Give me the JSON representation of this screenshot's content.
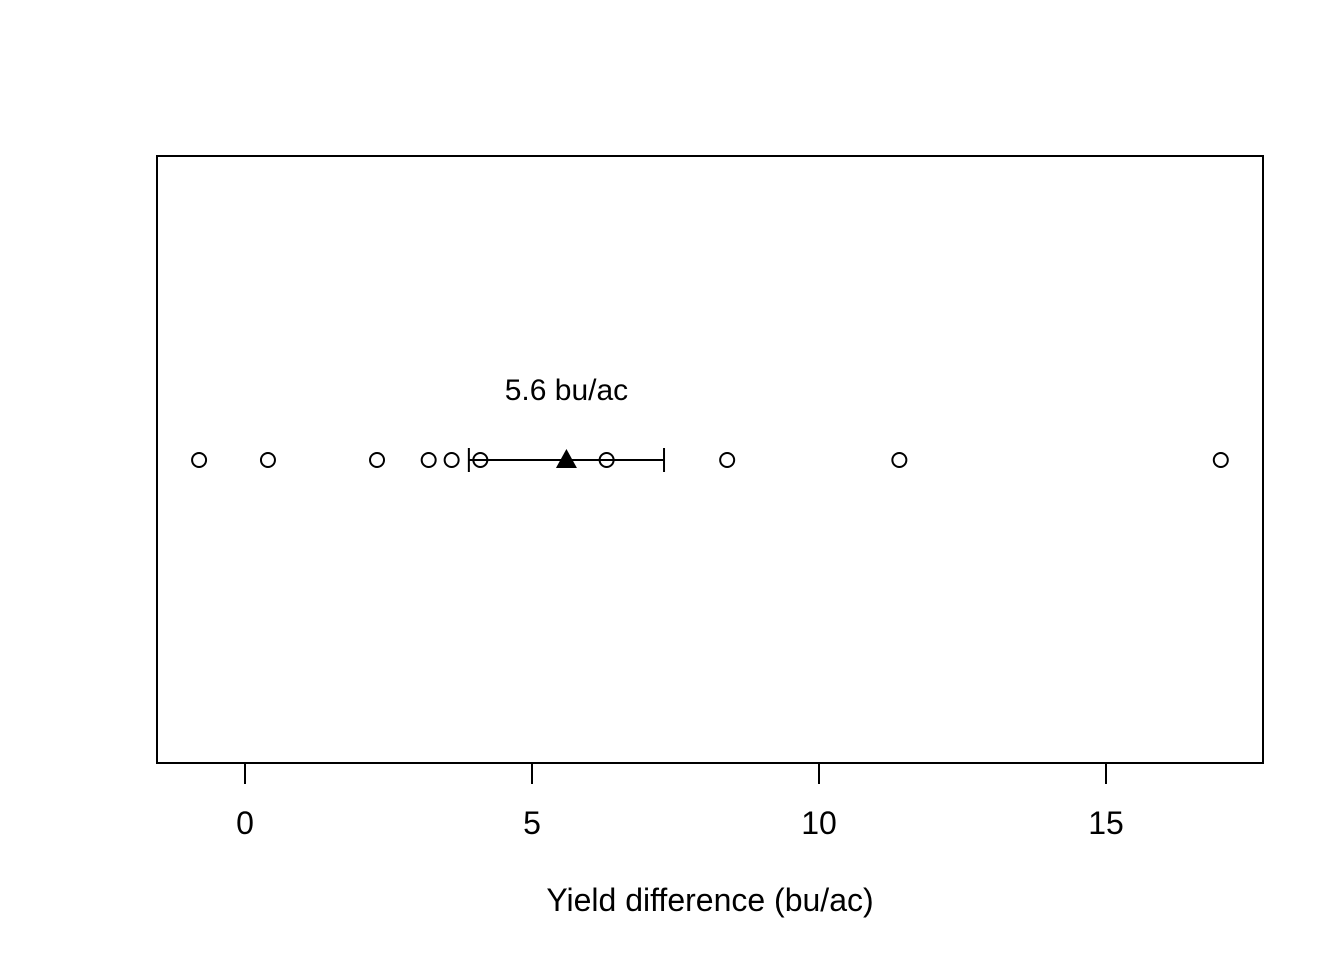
{
  "figure": {
    "background_color": "#ffffff",
    "foreground_color": "#000000"
  },
  "chart_data": {
    "type": "scatter",
    "subtype": "strip-plot-one-dimensional",
    "title": "",
    "xlabel": "Yield difference (bu/ac)",
    "ylabel": "",
    "x_ticks": [
      0,
      5,
      10,
      15
    ],
    "xlim": [
      -1.5,
      17.7
    ],
    "grid": false,
    "legend": "none",
    "points": [
      -0.8,
      0.4,
      2.3,
      3.2,
      3.6,
      4.1,
      6.3,
      8.4,
      11.4,
      17.0
    ],
    "point_marker": "open-circle",
    "mean": {
      "value": 5.6,
      "marker": "filled-triangle-up",
      "label": "5.6 bu/ac"
    },
    "interval": {
      "lower": 3.9,
      "upper": 7.3,
      "style": "horizontal-error-bar-with-end-caps"
    }
  }
}
